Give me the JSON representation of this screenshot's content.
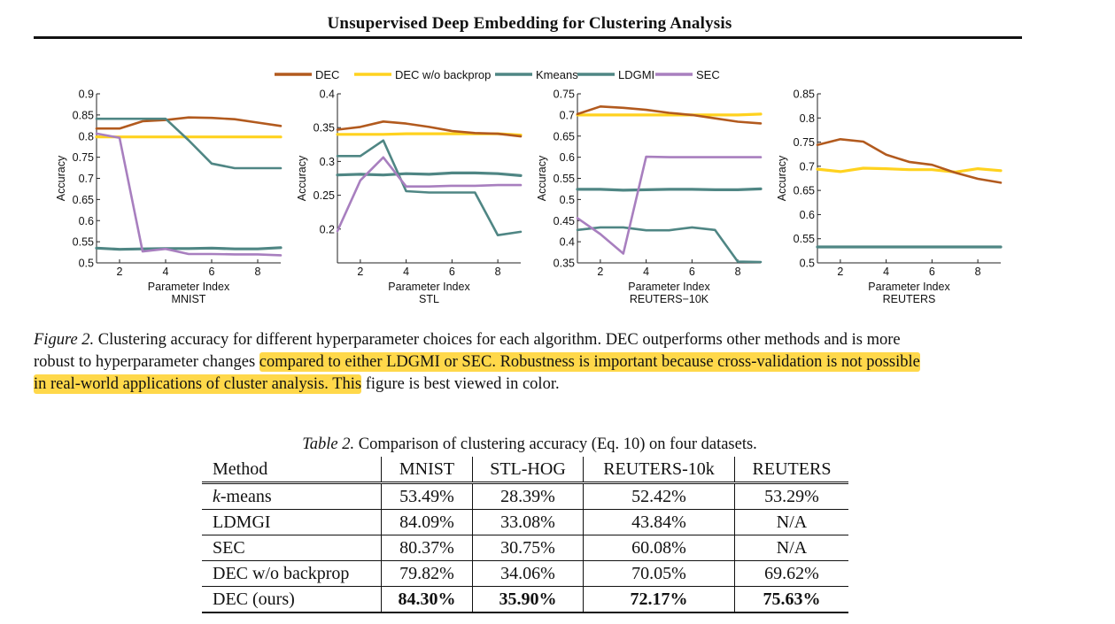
{
  "header": {
    "running_title": "Unsupervised Deep Embedding for Clustering Analysis"
  },
  "legend": [
    {
      "name": "DEC",
      "color": "#b25a1e"
    },
    {
      "name": "DEC w/o backprop",
      "color": "#ffd21f"
    },
    {
      "name": "Kmeans",
      "color": "#4f8684"
    },
    {
      "name": "LDGMI",
      "color": "#4f8684"
    },
    {
      "name": "SEC",
      "color": "#a87fbf"
    }
  ],
  "chart_data": [
    {
      "type": "line",
      "title": "MNIST",
      "xlabel": "Parameter Index",
      "ylabel": "Accuracy",
      "x": [
        1,
        2,
        3,
        4,
        5,
        6,
        7,
        8,
        9
      ],
      "xticks": [
        "2",
        "4",
        "6",
        "8"
      ],
      "xtick_values": [
        2,
        4,
        6,
        8
      ],
      "yticks": [
        "0.5",
        "0.55",
        "0.6",
        "0.65",
        "0.7",
        "0.75",
        "0.8",
        "0.85",
        "0.9"
      ],
      "ylim": [
        0.5,
        0.9
      ],
      "series": [
        {
          "name": "DEC",
          "values": [
            0.818,
            0.818,
            0.835,
            0.838,
            0.844,
            0.843,
            0.84,
            0.832,
            0.824
          ]
        },
        {
          "name": "DEC w/o backprop",
          "values": [
            0.798,
            0.798,
            0.798,
            0.798,
            0.798,
            0.798,
            0.798,
            0.798,
            0.798
          ]
        },
        {
          "name": "Kmeans",
          "values": [
            0.535,
            0.532,
            0.533,
            0.534,
            0.534,
            0.535,
            0.533,
            0.533,
            0.536
          ]
        },
        {
          "name": "LDGMI",
          "values": [
            0.841,
            0.841,
            0.841,
            0.841,
            0.79,
            0.735,
            0.724,
            0.724,
            0.724
          ]
        },
        {
          "name": "SEC",
          "values": [
            0.806,
            0.796,
            0.527,
            0.533,
            0.521,
            0.521,
            0.52,
            0.52,
            0.518
          ]
        }
      ]
    },
    {
      "type": "line",
      "title": "STL",
      "xlabel": "Parameter Index",
      "ylabel": "Accuracy",
      "x": [
        1,
        2,
        3,
        4,
        5,
        6,
        7,
        8,
        9
      ],
      "xticks": [
        "2",
        "4",
        "6",
        "8"
      ],
      "xtick_values": [
        2,
        4,
        6,
        8
      ],
      "yticks": [
        "0.2",
        "0.25",
        "0.3",
        "0.35",
        "0.4"
      ],
      "ylim": [
        0.15,
        0.4
      ],
      "series": [
        {
          "name": "DEC",
          "values": [
            0.347,
            0.351,
            0.359,
            0.356,
            0.351,
            0.345,
            0.342,
            0.341,
            0.337
          ]
        },
        {
          "name": "DEC w/o backprop",
          "values": [
            0.34,
            0.34,
            0.34,
            0.341,
            0.341,
            0.341,
            0.341,
            0.341,
            0.339
          ]
        },
        {
          "name": "Kmeans",
          "values": [
            0.28,
            0.281,
            0.28,
            0.282,
            0.281,
            0.283,
            0.283,
            0.282,
            0.279
          ]
        },
        {
          "name": "LDGMI",
          "values": [
            0.308,
            0.308,
            0.331,
            0.256,
            0.254,
            0.254,
            0.254,
            0.191,
            0.196
          ]
        },
        {
          "name": "SEC",
          "values": [
            0.197,
            0.272,
            0.306,
            0.263,
            0.263,
            0.264,
            0.264,
            0.265,
            0.265
          ]
        }
      ]
    },
    {
      "type": "line",
      "title": "REUTERS−10K",
      "xlabel": "Parameter Index",
      "ylabel": "Accuracy",
      "x": [
        1,
        2,
        3,
        4,
        5,
        6,
        7,
        8,
        9
      ],
      "xticks": [
        "2",
        "4",
        "6",
        "8"
      ],
      "xtick_values": [
        2,
        4,
        6,
        8
      ],
      "yticks": [
        "0.35",
        "0.4",
        "0.45",
        "0.5",
        "0.55",
        "0.6",
        "0.65",
        "0.7",
        "0.75"
      ],
      "ylim": [
        0.35,
        0.75
      ],
      "series": [
        {
          "name": "DEC",
          "values": [
            0.702,
            0.72,
            0.717,
            0.712,
            0.705,
            0.7,
            0.692,
            0.684,
            0.68
          ]
        },
        {
          "name": "DEC w/o backprop",
          "values": [
            0.7,
            0.7,
            0.7,
            0.7,
            0.7,
            0.7,
            0.7,
            0.7,
            0.702
          ]
        },
        {
          "name": "Kmeans",
          "values": [
            0.524,
            0.524,
            0.522,
            0.523,
            0.524,
            0.524,
            0.523,
            0.523,
            0.525
          ]
        },
        {
          "name": "LDGMI",
          "values": [
            0.428,
            0.434,
            0.434,
            0.427,
            0.427,
            0.434,
            0.428,
            0.353,
            0.352
          ]
        },
        {
          "name": "SEC",
          "values": [
            0.456,
            0.418,
            0.372,
            0.601,
            0.6,
            0.6,
            0.6,
            0.6,
            0.6
          ]
        }
      ]
    },
    {
      "type": "line",
      "title": "REUTERS",
      "xlabel": "Parameter Index",
      "ylabel": "Accuracy",
      "x": [
        1,
        2,
        3,
        4,
        5,
        6,
        7,
        8,
        9
      ],
      "xticks": [
        "2",
        "4",
        "6",
        "8"
      ],
      "xtick_values": [
        2,
        4,
        6,
        8
      ],
      "yticks": [
        "0.5",
        "0.55",
        "0.6",
        "0.65",
        "0.7",
        "0.75",
        "0.8",
        "0.85"
      ],
      "ylim": [
        0.5,
        0.85
      ],
      "series": [
        {
          "name": "DEC",
          "values": [
            0.744,
            0.756,
            0.751,
            0.724,
            0.709,
            0.703,
            0.687,
            0.674,
            0.666
          ]
        },
        {
          "name": "DEC w/o backprop",
          "values": [
            0.694,
            0.689,
            0.696,
            0.695,
            0.693,
            0.693,
            0.688,
            0.695,
            0.691
          ]
        },
        {
          "name": "Kmeans",
          "values": [
            0.533,
            0.533,
            0.533,
            0.533,
            0.533,
            0.533,
            0.533,
            0.533,
            0.533
          ]
        }
      ]
    }
  ],
  "figure_caption": {
    "lead": "Figure 2.",
    "line1_rest": " Clustering accuracy for different hyperparameter choices for each algorithm.  DEC outperforms other methods and is more",
    "line2_plain": "robust to hyperparameter changes ",
    "line2_highlight": "compared to either LDGMI or SEC. Robustness is important because cross-validation is not possible",
    "line3_highlight": "in real-world applications of cluster analysis. This",
    "line3_plain": " figure is best viewed in color."
  },
  "table": {
    "caption_lead": "Table 2.",
    "caption_rest": " Comparison of clustering accuracy (Eq. 10) on four datasets.",
    "headers": [
      "Method",
      "MNIST",
      "STL-HOG",
      "REUTERS-10k",
      "REUTERS"
    ],
    "rows": [
      {
        "method_italic": "k",
        "method_rest": "-means",
        "cells": [
          "53.49%",
          "28.39%",
          "52.42%",
          "53.29%"
        ]
      },
      {
        "method": "LDMGI",
        "cells": [
          "84.09%",
          "33.08%",
          "43.84%",
          "N/A"
        ]
      },
      {
        "method": "SEC",
        "cells": [
          "80.37%",
          "30.75%",
          "60.08%",
          "N/A"
        ]
      },
      {
        "method": "DEC w/o backprop",
        "cells": [
          "79.82%",
          "34.06%",
          "70.05%",
          "69.62%"
        ]
      },
      {
        "method": "DEC (ours)",
        "cells": [
          "84.30%",
          "35.90%",
          "72.17%",
          "75.63%"
        ]
      }
    ]
  }
}
